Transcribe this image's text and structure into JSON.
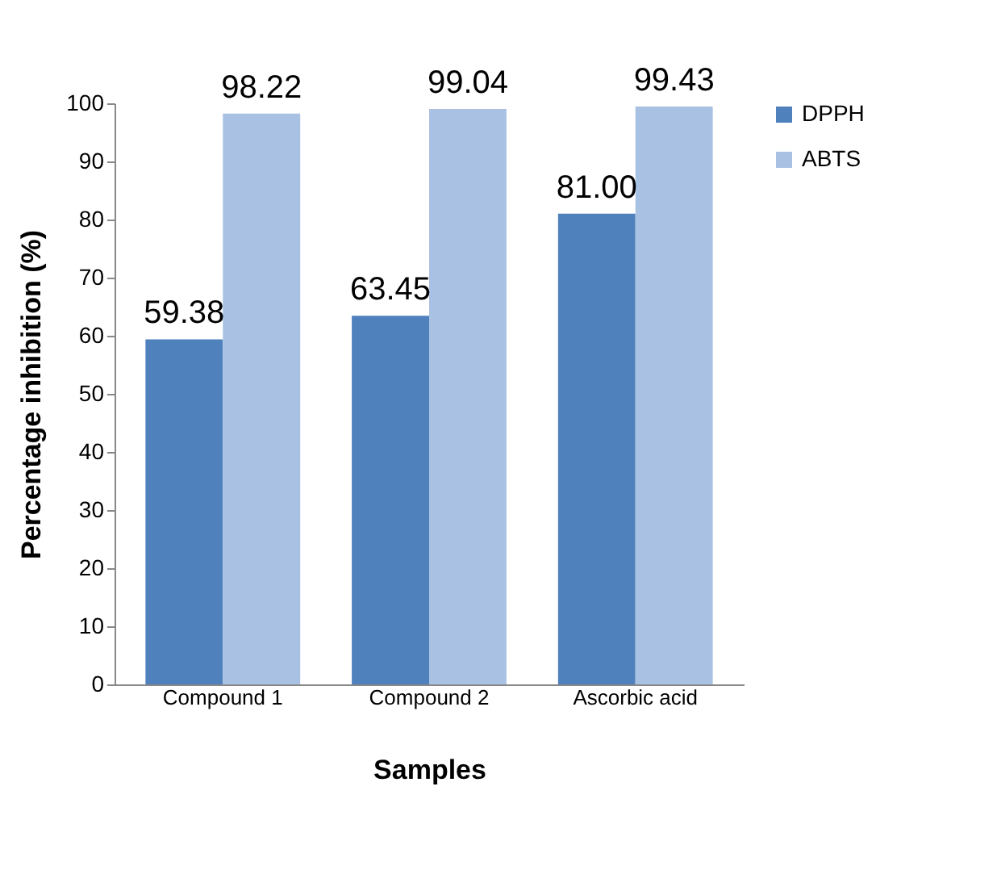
{
  "chart_data": {
    "type": "bar",
    "xlabel": "Samples",
    "ylabel": "Percentage inhibition (%)",
    "categories": [
      "Compound 1",
      "Compound 2",
      "Ascorbic acid"
    ],
    "series": [
      {
        "name": "DPPH",
        "color": "#4f81bd",
        "values": [
          59.38,
          63.45,
          81.0
        ],
        "value_labels": [
          "59.38",
          "63.45",
          "81.00"
        ]
      },
      {
        "name": "ABTS",
        "color": "#a9c2e3",
        "values": [
          98.22,
          99.04,
          99.43
        ],
        "value_labels": [
          "98.22",
          "99.04",
          "99.43"
        ]
      }
    ],
    "ylim": [
      0,
      100
    ],
    "yticks": [
      0,
      10,
      20,
      30,
      40,
      50,
      60,
      70,
      80,
      90,
      100
    ],
    "legend": "right"
  }
}
